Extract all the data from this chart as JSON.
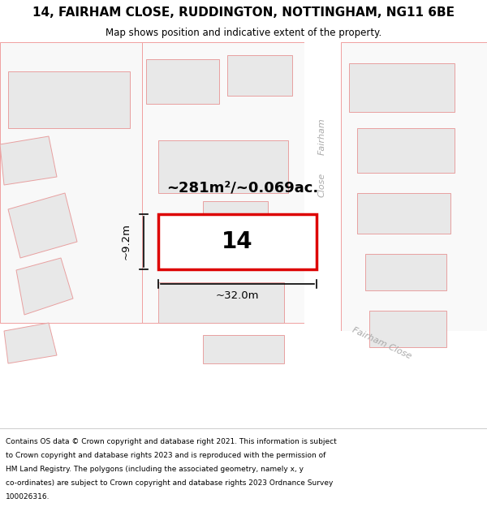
{
  "title": "14, FAIRHAM CLOSE, RUDDINGTON, NOTTINGHAM, NG11 6BE",
  "subtitle": "Map shows position and indicative extent of the property.",
  "footer_lines": [
    "Contains OS data © Crown copyright and database right 2021. This information is subject",
    "to Crown copyright and database rights 2023 and is reproduced with the permission of",
    "HM Land Registry. The polygons (including the associated geometry, namely x, y",
    "co-ordinates) are subject to Crown copyright and database rights 2023 Ordnance Survey",
    "100026316."
  ],
  "map_bg": "#ffffff",
  "plot_fill": "#ffffff",
  "plot_outline": "#dd0000",
  "building_fill": "#e8e8e8",
  "building_outline": "#e8a0a0",
  "parcel_line": "#f0a0a0",
  "area_text": "~281m²/~0.069ac.",
  "plot_number": "14",
  "dim_width": "~32.0m",
  "dim_height": "~9.2m",
  "street_color": "#aaaaaa",
  "title_fontsize": 11,
  "subtitle_fontsize": 8.5,
  "footer_fontsize": 6.5
}
